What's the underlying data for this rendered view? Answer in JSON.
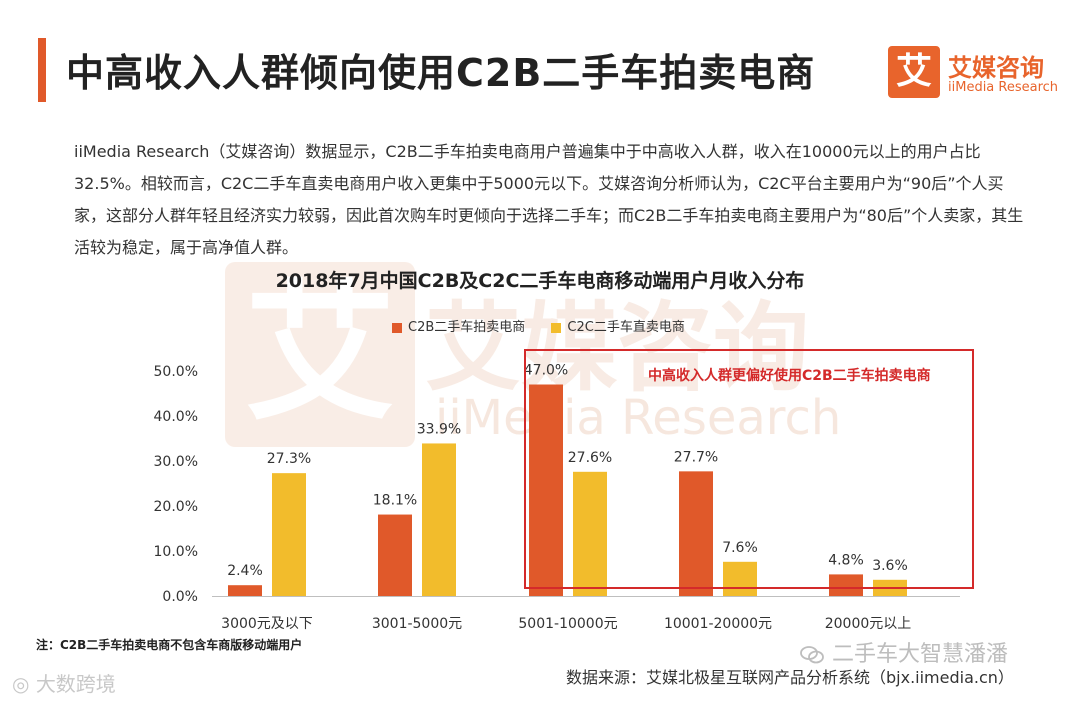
{
  "header": {
    "title": "中高收入人群倾向使用C2B二手车拍卖电商"
  },
  "logo": {
    "badge_char": "艾",
    "name_cn": "艾媒咨询",
    "name_en": "iiMedia Research"
  },
  "intro": "iiMedia Research（艾媒咨询）数据显示，C2B二手车拍卖电商用户普遍集中于中高收入人群，收入在10000元以上的用户占比32.5%。相较而言，C2C二手车直卖电商用户收入更集中于5000元以下。艾媒咨询分析师认为，C2C平台主要用户为“90后”个人买家，这部分人群年轻且经济实力较弱，因此首次购车时更倾向于选择二手车；而C2B二手车拍卖电商主要用户为“80后”个人卖家，其生活较为稳定，属于高净值人群。",
  "chart_data": {
    "type": "bar",
    "title": "2018年7月中国C2B及C2C二手车电商移动端用户月收入分布",
    "categories": [
      "3000元及以下",
      "3001-5000元",
      "5001-10000元",
      "10001-20000元",
      "20000元以上"
    ],
    "series": [
      {
        "name": "C2B二手车拍卖电商",
        "values": [
          2.4,
          18.1,
          47.0,
          27.7,
          4.8
        ],
        "color": "#e0592a"
      },
      {
        "name": "C2C二手车直卖电商",
        "values": [
          27.3,
          33.9,
          27.6,
          7.6,
          3.6
        ],
        "color": "#f2bc2c"
      }
    ],
    "value_labels": [
      [
        "2.4%",
        "18.1%",
        "47.0%",
        "27.7%",
        "4.8%"
      ],
      [
        "27.3%",
        "33.9%",
        "27.6%",
        "7.6%",
        "3.6%"
      ]
    ],
    "y_ticks": [
      "0.0%",
      "10.0%",
      "20.0%",
      "30.0%",
      "40.0%",
      "50.0%"
    ],
    "ylim": [
      0,
      50
    ],
    "xlabel": "",
    "ylabel": "",
    "grid": false,
    "legend": "top",
    "annotation": "中高收入人群更偏好使用C2B二手车拍卖电商"
  },
  "footer": {
    "note": "注：C2B二手车拍卖电商不包含车商版移动端用户",
    "source": "数据来源：艾媒北极星互联网产品分析系统（bjx.iimedia.cn）",
    "wechat_account": "二手车大智慧潘潘",
    "brand_bottom_left": "大数跨境"
  },
  "watermark": {
    "badge_char": "艾",
    "name_cn": "艾媒咨询",
    "name_en": "iiMedia Research"
  },
  "colors": {
    "accent": "#e0592a",
    "c2b": "#e0592a",
    "c2c": "#f2bc2c",
    "highlight": "#d42a2a"
  },
  "icons": [
    "wechat-icon",
    "brand-logo-icon"
  ]
}
